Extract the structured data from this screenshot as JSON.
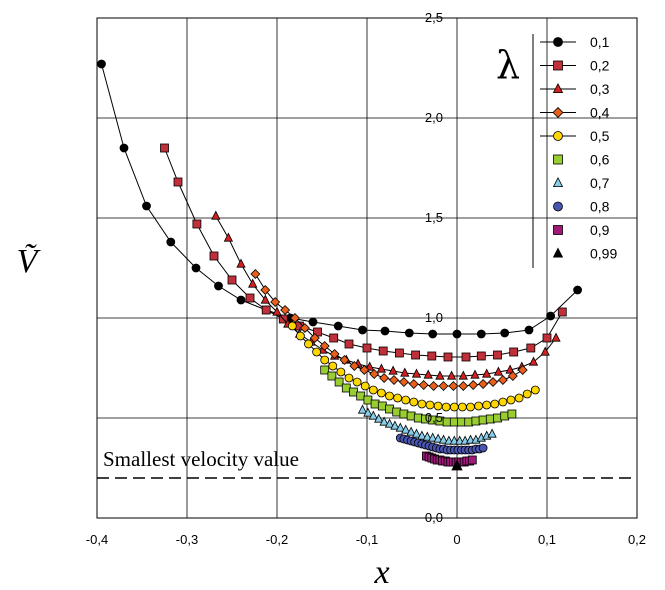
{
  "chart_data": {
    "type": "scatter",
    "xlabel": "x",
    "ylabel": "Ṽ",
    "xlim": [
      -0.4,
      0.2
    ],
    "ylim": [
      0.0,
      2.5
    ],
    "x_ticks": [
      -0.4,
      -0.3,
      -0.2,
      -0.1,
      0,
      0.1,
      0.2
    ],
    "x_tick_labels": [
      "-0,4",
      "-0,3",
      "-0,2",
      "-0,1",
      "0",
      "0,1",
      "0,2"
    ],
    "y_ticks": [
      0.0,
      0.5,
      1.0,
      1.5,
      2.0,
      2.5
    ],
    "y_tick_labels": [
      "0,0",
      "0,5",
      "1,0",
      "1,5",
      "2,0",
      "2,5"
    ],
    "grid": true,
    "legend_title": "λ",
    "legend_position": "top-right",
    "annotation": {
      "text": "Smallest velocity value",
      "y": 0.2
    },
    "colors": {
      "0,1": "#000000",
      "0,2": "#c0303a",
      "0,3": "#d42020",
      "0,4": "#e8601c",
      "0,5": "#ffd700",
      "0,6": "#9acd32",
      "0,7": "#87ceeb",
      "0,8": "#4a55b0",
      "0,9": "#a01878",
      "0,99": "#000000"
    },
    "series": [
      {
        "name": "0,1",
        "marker": "circle",
        "line": true,
        "x": [
          -0.395,
          -0.37,
          -0.345,
          -0.318,
          -0.29,
          -0.265,
          -0.24,
          -0.212,
          -0.185,
          -0.16,
          -0.132,
          -0.105,
          -0.08,
          -0.053,
          -0.027,
          0.0,
          0.027,
          0.053,
          0.08,
          0.104,
          0.134
        ],
        "y": [
          2.27,
          1.85,
          1.56,
          1.38,
          1.25,
          1.16,
          1.09,
          1.04,
          1.0,
          0.98,
          0.96,
          0.94,
          0.935,
          0.925,
          0.92,
          0.92,
          0.92,
          0.925,
          0.94,
          1.01,
          1.14
        ]
      },
      {
        "name": "0,2",
        "marker": "square",
        "line": true,
        "x": [
          -0.325,
          -0.31,
          -0.289,
          -0.27,
          -0.25,
          -0.23,
          -0.212,
          -0.193,
          -0.175,
          -0.155,
          -0.137,
          -0.12,
          -0.1,
          -0.082,
          -0.064,
          -0.046,
          -0.028,
          -0.01,
          0.01,
          0.027,
          0.045,
          0.063,
          0.082,
          0.1,
          0.117
        ],
        "y": [
          1.85,
          1.68,
          1.47,
          1.31,
          1.19,
          1.1,
          1.04,
          0.995,
          0.96,
          0.93,
          0.9,
          0.87,
          0.85,
          0.835,
          0.825,
          0.815,
          0.81,
          0.805,
          0.805,
          0.81,
          0.815,
          0.83,
          0.85,
          0.9,
          1.03
        ]
      },
      {
        "name": "0,3",
        "marker": "triangle",
        "line": true,
        "x": [
          -0.268,
          -0.254,
          -0.24,
          -0.227,
          -0.213,
          -0.2,
          -0.188,
          -0.175,
          -0.162,
          -0.149,
          -0.136,
          -0.123,
          -0.11,
          -0.097,
          -0.084,
          -0.071,
          -0.058,
          -0.045,
          -0.032,
          -0.019,
          -0.006,
          0.007,
          0.02,
          0.033,
          0.046,
          0.059,
          0.072,
          0.085,
          0.098,
          0.11
        ],
        "y": [
          1.51,
          1.4,
          1.27,
          1.17,
          1.09,
          1.03,
          0.97,
          0.92,
          0.88,
          0.84,
          0.81,
          0.79,
          0.77,
          0.755,
          0.745,
          0.735,
          0.725,
          0.72,
          0.715,
          0.71,
          0.71,
          0.71,
          0.715,
          0.72,
          0.73,
          0.74,
          0.755,
          0.78,
          0.83,
          0.9
        ]
      },
      {
        "name": "0,4",
        "marker": "diamond",
        "line": true,
        "x": [
          -0.224,
          -0.213,
          -0.202,
          -0.191,
          -0.18,
          -0.169,
          -0.158,
          -0.147,
          -0.136,
          -0.125,
          -0.114,
          -0.103,
          -0.092,
          -0.081,
          -0.07,
          -0.059,
          -0.048,
          -0.037,
          -0.026,
          -0.015,
          -0.004,
          0.007,
          0.018,
          0.029,
          0.04,
          0.051,
          0.062,
          0.073
        ],
        "y": [
          1.22,
          1.14,
          1.08,
          1.04,
          1.0,
          0.95,
          0.9,
          0.86,
          0.82,
          0.79,
          0.76,
          0.74,
          0.72,
          0.7,
          0.69,
          0.68,
          0.67,
          0.665,
          0.66,
          0.66,
          0.66,
          0.66,
          0.665,
          0.67,
          0.68,
          0.69,
          0.71,
          0.74
        ]
      },
      {
        "name": "0,5",
        "marker": "circle",
        "line": true,
        "x": [
          -0.183,
          -0.174,
          -0.165,
          -0.156,
          -0.147,
          -0.138,
          -0.129,
          -0.12,
          -0.111,
          -0.102,
          -0.093,
          -0.084,
          -0.075,
          -0.066,
          -0.057,
          -0.048,
          -0.039,
          -0.03,
          -0.021,
          -0.012,
          -0.003,
          0.006,
          0.015,
          0.024,
          0.033,
          0.042,
          0.051,
          0.06,
          0.069,
          0.078,
          0.087
        ],
        "y": [
          0.96,
          0.91,
          0.87,
          0.83,
          0.79,
          0.76,
          0.73,
          0.7,
          0.68,
          0.66,
          0.64,
          0.625,
          0.61,
          0.6,
          0.59,
          0.58,
          0.57,
          0.565,
          0.56,
          0.555,
          0.555,
          0.555,
          0.555,
          0.56,
          0.565,
          0.57,
          0.58,
          0.59,
          0.6,
          0.62,
          0.64
        ]
      },
      {
        "name": "0,6",
        "marker": "square",
        "line": false,
        "x": [
          -0.147,
          -0.139,
          -0.131,
          -0.123,
          -0.115,
          -0.107,
          -0.099,
          -0.091,
          -0.083,
          -0.075,
          -0.067,
          -0.059,
          -0.051,
          -0.043,
          -0.035,
          -0.027,
          -0.019,
          -0.011,
          -0.003,
          0.005,
          0.013,
          0.021,
          0.029,
          0.037,
          0.045,
          0.053,
          0.061
        ],
        "y": [
          0.74,
          0.71,
          0.68,
          0.65,
          0.63,
          0.61,
          0.59,
          0.57,
          0.56,
          0.545,
          0.53,
          0.52,
          0.51,
          0.5,
          0.495,
          0.49,
          0.485,
          0.48,
          0.48,
          0.48,
          0.48,
          0.485,
          0.49,
          0.495,
          0.5,
          0.51,
          0.52
        ]
      },
      {
        "name": "0,7",
        "marker": "triangle",
        "line": false,
        "x": [
          -0.105,
          -0.099,
          -0.093,
          -0.087,
          -0.081,
          -0.075,
          -0.069,
          -0.063,
          -0.057,
          -0.051,
          -0.045,
          -0.039,
          -0.033,
          -0.027,
          -0.021,
          -0.015,
          -0.009,
          -0.003,
          0.003,
          0.009,
          0.015,
          0.021,
          0.027,
          0.033,
          0.039
        ],
        "y": [
          0.54,
          0.525,
          0.51,
          0.495,
          0.48,
          0.47,
          0.46,
          0.45,
          0.44,
          0.43,
          0.42,
          0.41,
          0.405,
          0.4,
          0.395,
          0.39,
          0.385,
          0.385,
          0.385,
          0.385,
          0.39,
          0.39,
          0.4,
          0.41,
          0.42
        ]
      },
      {
        "name": "0,8",
        "marker": "circle",
        "line": false,
        "x": [
          -0.063,
          -0.059,
          -0.055,
          -0.051,
          -0.047,
          -0.043,
          -0.039,
          -0.035,
          -0.031,
          -0.027,
          -0.023,
          -0.019,
          -0.015,
          -0.011,
          -0.007,
          -0.003,
          0.001,
          0.005,
          0.009,
          0.013,
          0.017,
          0.021,
          0.025,
          0.029
        ],
        "y": [
          0.4,
          0.395,
          0.39,
          0.385,
          0.38,
          0.375,
          0.37,
          0.365,
          0.36,
          0.355,
          0.35,
          0.345,
          0.345,
          0.34,
          0.34,
          0.34,
          0.34,
          0.34,
          0.34,
          0.34,
          0.34,
          0.345,
          0.345,
          0.35
        ]
      },
      {
        "name": "0,9",
        "marker": "square",
        "line": false,
        "x": [
          -0.034,
          -0.031,
          -0.028,
          -0.025,
          -0.022,
          -0.019,
          -0.016,
          -0.013,
          -0.01,
          -0.007,
          -0.004,
          -0.001,
          0.002,
          0.005,
          0.008,
          0.011,
          0.014,
          0.017
        ],
        "y": [
          0.31,
          0.305,
          0.3,
          0.295,
          0.29,
          0.29,
          0.285,
          0.285,
          0.28,
          0.28,
          0.28,
          0.28,
          0.28,
          0.28,
          0.28,
          0.285,
          0.285,
          0.29
        ]
      },
      {
        "name": "0,99",
        "marker": "triangle",
        "line": false,
        "x": [
          0.0
        ],
        "y": [
          0.26
        ]
      }
    ]
  }
}
